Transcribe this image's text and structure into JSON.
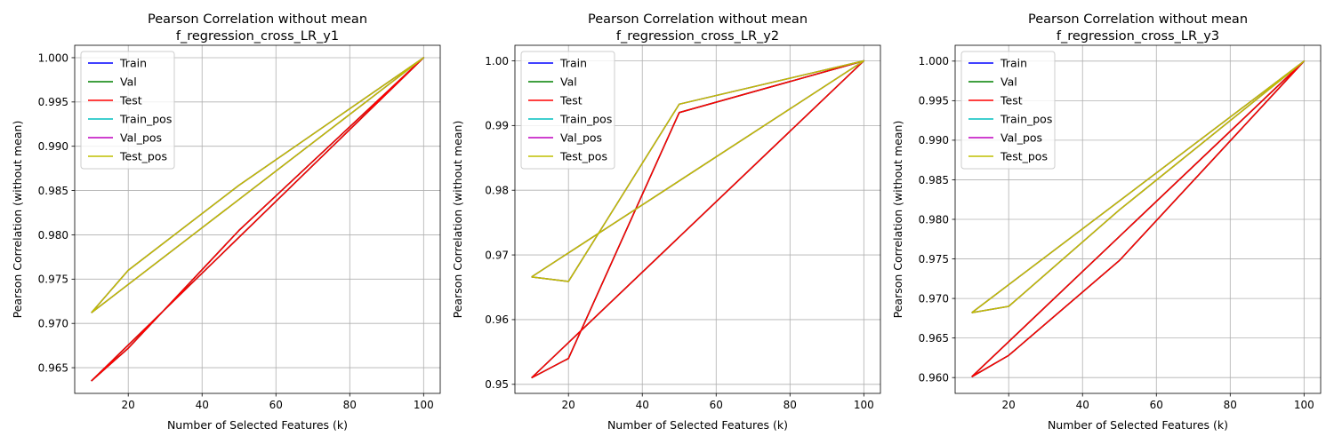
{
  "chart_data": [
    {
      "type": "line",
      "title": [
        "Pearson Correlation without mean",
        "f_regression_cross_LR_y1"
      ],
      "xlabel": "Number of Selected Features (k)",
      "ylabel": "Pearson Correlation (without mean)",
      "xlim": [
        5.5,
        104.5
      ],
      "ylim": [
        0.9621,
        1.0014
      ],
      "xticks": [
        20,
        40,
        60,
        80,
        100
      ],
      "xtick_labels": [
        "20",
        "40",
        "60",
        "80",
        "100"
      ],
      "yticks": [
        0.965,
        0.97,
        0.975,
        0.98,
        0.985,
        0.99,
        0.995,
        1.0
      ],
      "ytick_labels": [
        "0.965",
        "0.970",
        "0.975",
        "0.980",
        "0.985",
        "0.990",
        "0.995",
        "1.000"
      ],
      "grid": true,
      "legend_position": "top-left",
      "x": [
        10,
        20,
        50,
        100,
        10
      ],
      "series": [
        {
          "name": "Train",
          "color": "#0000ff",
          "values": [
            0.9635,
            0.9672,
            0.9805,
            1.0,
            0.9635
          ]
        },
        {
          "name": "Val",
          "color": "#008000",
          "values": [
            0.9635,
            0.9672,
            0.9805,
            1.0,
            0.9635
          ]
        },
        {
          "name": "Test",
          "color": "#ff0000",
          "values": [
            0.9635,
            0.9672,
            0.9805,
            1.0,
            0.9635
          ]
        },
        {
          "name": "Train_pos",
          "color": "#00bfbf",
          "values": [
            0.9712,
            0.976,
            0.9856,
            1.0,
            0.9712
          ]
        },
        {
          "name": "Val_pos",
          "color": "#bf00bf",
          "values": [
            0.9712,
            0.976,
            0.9856,
            1.0,
            0.9712
          ]
        },
        {
          "name": "Test_pos",
          "color": "#bfbf00",
          "values": [
            0.9712,
            0.976,
            0.9856,
            1.0,
            0.9712
          ]
        }
      ]
    },
    {
      "type": "line",
      "title": [
        "Pearson Correlation without mean",
        "f_regression_cross_LR_y2"
      ],
      "xlabel": "Number of Selected Features (k)",
      "ylabel": "Pearson Correlation (without mean)",
      "xlim": [
        5.5,
        104.5
      ],
      "ylim": [
        0.9486,
        1.0024
      ],
      "xticks": [
        20,
        40,
        60,
        80,
        100
      ],
      "xtick_labels": [
        "20",
        "40",
        "60",
        "80",
        "100"
      ],
      "yticks": [
        0.95,
        0.96,
        0.97,
        0.98,
        0.99,
        1.0
      ],
      "ytick_labels": [
        "0.95",
        "0.96",
        "0.97",
        "0.98",
        "0.99",
        "1.00"
      ],
      "grid": true,
      "legend_position": "top-left",
      "x": [
        10,
        20,
        50,
        100,
        10
      ],
      "series": [
        {
          "name": "Train",
          "color": "#0000ff",
          "values": [
            0.951,
            0.954,
            0.992,
            1.0,
            0.951
          ]
        },
        {
          "name": "Val",
          "color": "#008000",
          "values": [
            0.951,
            0.954,
            0.992,
            1.0,
            0.951
          ]
        },
        {
          "name": "Test",
          "color": "#ff0000",
          "values": [
            0.951,
            0.954,
            0.992,
            1.0,
            0.951
          ]
        },
        {
          "name": "Train_pos",
          "color": "#00bfbf",
          "values": [
            0.9666,
            0.9659,
            0.9933,
            1.0,
            0.9666
          ]
        },
        {
          "name": "Val_pos",
          "color": "#bf00bf",
          "values": [
            0.9666,
            0.9659,
            0.9933,
            1.0,
            0.9666
          ]
        },
        {
          "name": "Test_pos",
          "color": "#bfbf00",
          "values": [
            0.9666,
            0.9659,
            0.9933,
            1.0,
            0.9666
          ]
        }
      ]
    },
    {
      "type": "line",
      "title": [
        "Pearson Correlation without mean",
        "f_regression_cross_LR_y3"
      ],
      "xlabel": "Number of Selected Features (k)",
      "ylabel": "Pearson Correlation (without mean)",
      "xlim": [
        5.5,
        104.5
      ],
      "ylim": [
        0.958,
        1.002
      ],
      "xticks": [
        20,
        40,
        60,
        80,
        100
      ],
      "xtick_labels": [
        "20",
        "40",
        "60",
        "80",
        "100"
      ],
      "yticks": [
        0.96,
        0.965,
        0.97,
        0.975,
        0.98,
        0.985,
        0.99,
        0.995,
        1.0
      ],
      "ytick_labels": [
        "0.960",
        "0.965",
        "0.970",
        "0.975",
        "0.980",
        "0.985",
        "0.990",
        "0.995",
        "1.000"
      ],
      "grid": true,
      "legend_position": "top-left",
      "x": [
        10,
        20,
        50,
        100,
        10
      ],
      "series": [
        {
          "name": "Train",
          "color": "#0000ff",
          "values": [
            0.9601,
            0.9628,
            0.9748,
            1.0,
            0.9601
          ]
        },
        {
          "name": "Val",
          "color": "#008000",
          "values": [
            0.9601,
            0.9628,
            0.9748,
            1.0,
            0.9601
          ]
        },
        {
          "name": "Test",
          "color": "#ff0000",
          "values": [
            0.9601,
            0.9628,
            0.9748,
            1.0,
            0.9601
          ]
        },
        {
          "name": "Train_pos",
          "color": "#00bfbf",
          "values": [
            0.9682,
            0.969,
            0.9812,
            1.0,
            0.9682
          ]
        },
        {
          "name": "Val_pos",
          "color": "#bf00bf",
          "values": [
            0.9682,
            0.969,
            0.9812,
            1.0,
            0.9682
          ]
        },
        {
          "name": "Test_pos",
          "color": "#bfbf00",
          "values": [
            0.9682,
            0.969,
            0.9812,
            1.0,
            0.9682
          ]
        }
      ]
    }
  ]
}
